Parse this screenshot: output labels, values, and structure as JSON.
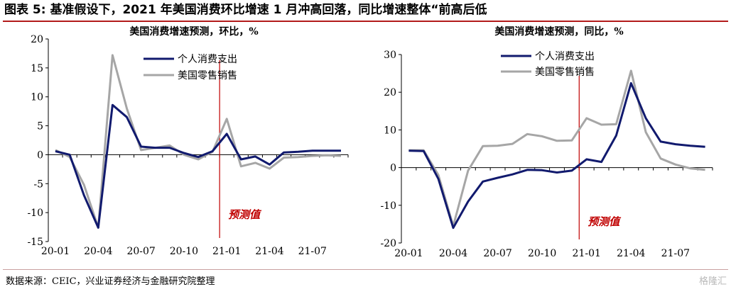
{
  "figure_title": "图表 5: 基准假设下，2021 年美国消费环比增速 1 月冲高回落，同比增速整体“前高后低",
  "source": "数据来源：CEIC，兴业证券经济与金融研究院整理",
  "watermark": "格隆汇",
  "colors": {
    "personal_consumption": "#111a6e",
    "retail_sales": "#a6a6a6",
    "forecast_line": "#c00000",
    "forecast_text": "#c00000"
  },
  "chart_data": [
    {
      "type": "line",
      "title": "美国消费增速预测，环比，%",
      "ylim": [
        -15,
        20
      ],
      "yticks": [
        -15,
        -10,
        -5,
        0,
        5,
        10,
        15,
        20
      ],
      "x": [
        "20-01",
        "20-02",
        "20-03",
        "20-04",
        "20-05",
        "20-06",
        "20-07",
        "20-08",
        "20-09",
        "20-10",
        "20-11",
        "20-12",
        "21-01",
        "21-02",
        "21-03",
        "21-04",
        "21-05",
        "21-06",
        "21-07",
        "21-08",
        "21-09"
      ],
      "xtick_labels": [
        "20-01",
        "20-04",
        "20-07",
        "20-10",
        "21-01",
        "21-04",
        "21-07"
      ],
      "forecast_start": "20-12",
      "forecast_label": "预测值",
      "series": [
        {
          "name": "个人消费支出",
          "color": "#111a6e",
          "values": [
            0.6,
            0.0,
            -7.0,
            -12.6,
            8.6,
            6.5,
            1.4,
            1.2,
            1.2,
            0.3,
            -0.4,
            0.6,
            3.6,
            -0.8,
            -0.3,
            -1.7,
            0.4,
            0.5,
            0.7,
            0.7,
            0.7
          ]
        },
        {
          "name": "美国零售销售",
          "color": "#a6a6a6",
          "values": [
            0.8,
            -0.4,
            -5.2,
            -12.6,
            17.2,
            8.0,
            0.8,
            1.2,
            1.6,
            0.0,
            -0.8,
            0.5,
            6.2,
            -2.0,
            -1.4,
            -2.4,
            -0.5,
            -0.4,
            -0.2,
            -0.1,
            -0.2
          ]
        }
      ]
    },
    {
      "type": "line",
      "title": "美国消费增速预测，同比，%",
      "ylim": [
        -20,
        30
      ],
      "yticks": [
        -20,
        -10,
        0,
        10,
        20,
        30
      ],
      "x": [
        "20-01",
        "20-02",
        "20-03",
        "20-04",
        "20-05",
        "20-06",
        "20-07",
        "20-08",
        "20-09",
        "20-10",
        "20-11",
        "20-12",
        "21-01",
        "21-02",
        "21-03",
        "21-04",
        "21-05",
        "21-06",
        "21-07",
        "21-08",
        "21-09"
      ],
      "xtick_labels": [
        "20-01",
        "20-04",
        "20-07",
        "20-10",
        "21-01",
        "21-04",
        "21-07"
      ],
      "forecast_start": "20-12",
      "forecast_label": "预测值",
      "series": [
        {
          "name": "个人消费支出",
          "color": "#111a6e",
          "values": [
            4.5,
            4.4,
            -3.0,
            -16.0,
            -9.0,
            -3.7,
            -2.7,
            -1.8,
            -0.6,
            -0.7,
            -1.3,
            -0.8,
            2.2,
            1.5,
            8.5,
            22.4,
            13.1,
            6.9,
            6.2,
            5.8,
            5.5
          ]
        },
        {
          "name": "美国零售销售",
          "color": "#a6a6a6",
          "values": [
            4.6,
            4.6,
            -2.0,
            -15.5,
            -0.8,
            5.7,
            5.8,
            6.3,
            8.9,
            8.3,
            7.1,
            7.2,
            13.1,
            11.4,
            11.5,
            25.7,
            9.4,
            2.4,
            0.8,
            -0.2,
            -0.6
          ]
        }
      ]
    }
  ]
}
